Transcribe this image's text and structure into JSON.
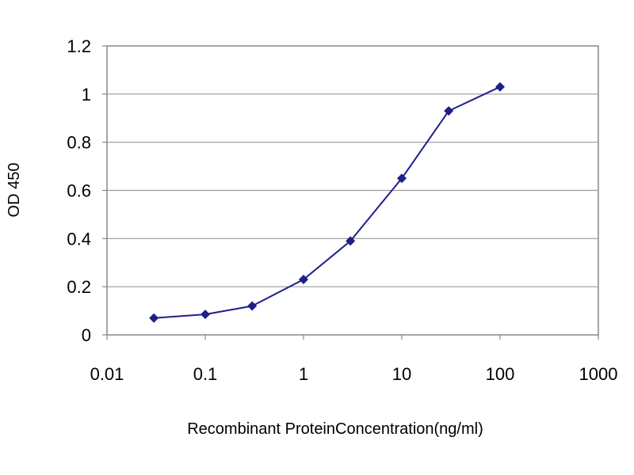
{
  "chart_data": {
    "type": "line",
    "title": "",
    "xlabel": "Recombinant ProteinConcentration(ng/ml)",
    "ylabel": "OD 450",
    "xscale": "log",
    "xlim": [
      0.01,
      1000
    ],
    "ylim": [
      0,
      1.2
    ],
    "xticks": [
      "0.01",
      "0.1",
      "1",
      "10",
      "100",
      "1000"
    ],
    "yticks": [
      "0",
      "0.2",
      "0.4",
      "0.6",
      "0.8",
      "1",
      "1.2"
    ],
    "grid": "horizontal",
    "legend": "none",
    "series": [
      {
        "x": [
          0.03,
          0.1,
          0.3,
          1,
          3,
          10,
          30,
          100
        ],
        "y": [
          0.07,
          0.085,
          0.12,
          0.23,
          0.39,
          0.65,
          0.93,
          1.03
        ],
        "color": "#1f1f8a"
      }
    ]
  }
}
